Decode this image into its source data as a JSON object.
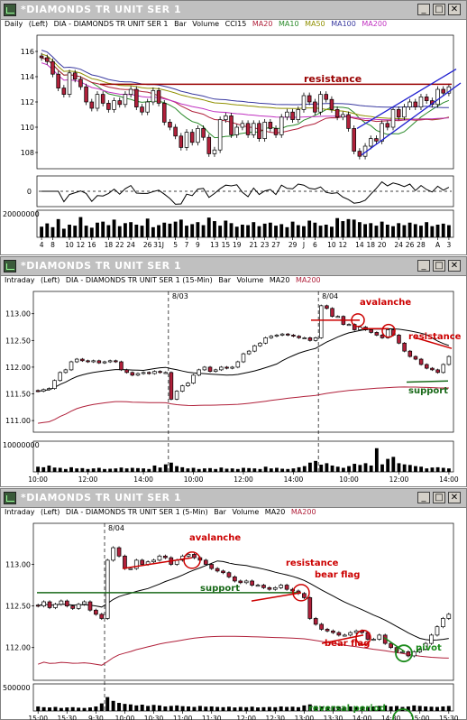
{
  "windows": [
    {
      "title": "*DIAMONDS TR UNIT SER 1",
      "legend": {
        "period": "Daily",
        "axis": "(Left)",
        "symbol": "DIA - DIAMONDS TR UNIT SER 1",
        "style": "Bar",
        "vol": "Volume",
        "osc": "CCI15",
        "ma": [
          {
            "label": "MA20",
            "color": "#b0203a"
          },
          {
            "label": "MA10",
            "color": "#2a8a2a"
          },
          {
            "label": "MA50",
            "color": "#909000"
          },
          {
            "label": "MA100",
            "color": "#3a3aa0"
          },
          {
            "label": "MA200",
            "color": "#c030c0"
          }
        ]
      }
    },
    {
      "title": "*DIAMONDS TR UNIT SER 1",
      "legend": {
        "period": "Intraday",
        "axis": "(Left)",
        "symbol": "DIA - DIAMONDS TR UNIT SER 1 (15-Min)",
        "style": "Bar",
        "vol": "Volume",
        "osc": "",
        "ma": [
          {
            "label": "MA20",
            "color": "#000000"
          },
          {
            "label": "MA200",
            "color": "#b0203a"
          }
        ]
      }
    },
    {
      "title": "*DIAMONDS TR UNIT SER 1",
      "legend": {
        "period": "Intraday",
        "axis": "(Left)",
        "symbol": "DIA - DIAMONDS TR UNIT SER 1 (5-Min)",
        "style": "Bar",
        "vol": "Volume",
        "osc": "",
        "ma": [
          {
            "label": "MA20",
            "color": "#000000"
          },
          {
            "label": "MA200",
            "color": "#b0203a"
          }
        ]
      }
    }
  ],
  "chart_data": [
    {
      "type": "candlestick",
      "title": "*DIAMONDS TR UNIT SER 1",
      "y_ticks": [
        108,
        110,
        112,
        114,
        116
      ],
      "ylim": [
        107,
        117
      ],
      "x_ticks": [
        "4",
        "8",
        "10",
        "12",
        "16",
        "18",
        "22",
        "24",
        "26",
        "31J",
        "5",
        "7",
        "9",
        "13",
        "15",
        "19",
        "21",
        "23",
        "27",
        "29",
        "J",
        "6",
        "10",
        "12",
        "14",
        "18",
        "20",
        "24",
        "26",
        "28",
        "A",
        "3"
      ],
      "close": [
        115.5,
        115.2,
        114.2,
        113.1,
        112.6,
        114.3,
        113.8,
        113.2,
        112.0,
        111.5,
        112.6,
        111.9,
        111.4,
        112.1,
        111.8,
        112.6,
        113.0,
        111.6,
        111.2,
        112.0,
        112.9,
        111.9,
        110.4,
        110.0,
        109.3,
        108.4,
        109.6,
        108.8,
        109.9,
        109.2,
        107.9,
        108.2,
        110.6,
        110.9,
        109.4,
        110.0,
        110.3,
        109.4,
        110.3,
        109.1,
        110.4,
        109.9,
        109.4,
        110.8,
        111.2,
        110.6,
        111.4,
        112.5,
        112.0,
        111.2,
        112.6,
        112.2,
        111.4,
        110.8,
        111.0,
        109.9,
        108.1,
        107.7,
        108.5,
        109.1,
        108.9,
        110.3,
        110.0,
        111.4,
        110.8,
        111.6,
        112.0,
        111.6,
        112.4,
        112.1,
        111.8,
        113.0,
        112.7,
        113.2
      ],
      "annotations": [
        {
          "text": "resistance",
          "color": "#990000"
        }
      ],
      "oscillator": {
        "label": "0"
      },
      "volume_label": "20000000",
      "volume": [
        0.42,
        0.55,
        0.4,
        0.72,
        0.34,
        0.5,
        0.46,
        0.8,
        0.46,
        0.38,
        0.58,
        0.62,
        0.48,
        0.7,
        0.44,
        0.56,
        0.6,
        0.5,
        0.46,
        0.74,
        0.4,
        0.48,
        0.58,
        0.54,
        0.62,
        0.7,
        0.46,
        0.52,
        0.6,
        0.48,
        0.78,
        0.64,
        0.46,
        0.66,
        0.56,
        0.42,
        0.5,
        0.48,
        0.6,
        0.44,
        0.54,
        0.58,
        0.46,
        0.52,
        0.4,
        0.62,
        0.48,
        0.44,
        0.66,
        0.58,
        0.46,
        0.5,
        0.42,
        0.76,
        0.64,
        0.72,
        0.7,
        0.6,
        0.52,
        0.56,
        0.46,
        0.62,
        0.5,
        0.44,
        0.56,
        0.48,
        0.58,
        0.52,
        0.46,
        0.6,
        0.44,
        0.5,
        0.54,
        0.48
      ]
    },
    {
      "type": "candlestick",
      "title": "*DIAMONDS TR UNIT SER 1",
      "y_ticks": [
        111.0,
        111.5,
        112.0,
        112.5,
        113.0
      ],
      "y_labels": [
        "111.00",
        "111.50",
        "112.00",
        "112.50",
        "113.00"
      ],
      "ylim": [
        110.85,
        113.35
      ],
      "x_ticks": [
        "10:00",
        "12:00",
        "14:00",
        "10:00",
        "12:00",
        "14:00",
        "10:00",
        "12:00",
        "14:00"
      ],
      "sessions": [
        "8/03",
        "8/04"
      ],
      "close": [
        111.55,
        111.58,
        111.6,
        111.75,
        111.9,
        111.95,
        112.1,
        112.15,
        112.12,
        112.1,
        112.12,
        112.08,
        112.1,
        112.12,
        112.1,
        111.95,
        111.9,
        111.85,
        111.88,
        111.9,
        111.88,
        111.92,
        111.9,
        111.9,
        111.4,
        111.55,
        111.65,
        111.7,
        111.85,
        111.95,
        112.0,
        111.92,
        111.95,
        112.0,
        111.98,
        112.0,
        112.1,
        112.25,
        112.3,
        112.4,
        112.45,
        112.55,
        112.58,
        112.6,
        112.62,
        112.6,
        112.58,
        112.55,
        112.55,
        112.5,
        112.55,
        113.15,
        113.1,
        112.95,
        112.95,
        112.8,
        112.8,
        112.7,
        112.75,
        112.7,
        112.65,
        112.6,
        112.55,
        112.7,
        112.6,
        112.45,
        112.3,
        112.2,
        112.15,
        112.05,
        111.98,
        111.95,
        111.9,
        112.05,
        112.2
      ],
      "annotations": [
        {
          "text": "avalanche",
          "color": "#cc0000"
        },
        {
          "text": "resistance",
          "color": "#cc0000"
        },
        {
          "text": "support",
          "color": "#1a6a1a"
        }
      ],
      "volume_label": "10000000",
      "volume": [
        0.18,
        0.16,
        0.22,
        0.15,
        0.14,
        0.1,
        0.16,
        0.12,
        0.13,
        0.1,
        0.12,
        0.14,
        0.1,
        0.11,
        0.12,
        0.15,
        0.12,
        0.14,
        0.13,
        0.12,
        0.1,
        0.22,
        0.15,
        0.26,
        0.32,
        0.2,
        0.16,
        0.12,
        0.14,
        0.1,
        0.12,
        0.13,
        0.1,
        0.15,
        0.11,
        0.12,
        0.1,
        0.14,
        0.13,
        0.12,
        0.1,
        0.18,
        0.12,
        0.14,
        0.11,
        0.1,
        0.12,
        0.16,
        0.2,
        0.32,
        0.38,
        0.25,
        0.3,
        0.22,
        0.18,
        0.14,
        0.2,
        0.28,
        0.24,
        0.3,
        0.22,
        0.82,
        0.26,
        0.45,
        0.52,
        0.3,
        0.26,
        0.24,
        0.2,
        0.18,
        0.12,
        0.15,
        0.16,
        0.14,
        0.12
      ]
    },
    {
      "type": "candlestick",
      "title": "*DIAMONDS TR UNIT SER 1",
      "y_ticks": [
        112.0,
        112.5,
        113.0
      ],
      "y_labels": [
        "112.00",
        "112.50",
        "113.00"
      ],
      "ylim": [
        111.65,
        113.45
      ],
      "x_ticks": [
        "15:00",
        "15:30",
        "9:30",
        "10:00",
        "10:30",
        "11:00",
        "11:30",
        "12:00",
        "12:30",
        "13:00",
        "13:30",
        "14:00",
        "14:30",
        "15:00",
        "15:30"
      ],
      "sessions": [
        "8/04"
      ],
      "close": [
        112.5,
        112.55,
        112.48,
        112.52,
        112.56,
        112.5,
        112.47,
        112.52,
        112.55,
        112.45,
        112.4,
        112.35,
        113.05,
        113.2,
        113.1,
        112.95,
        112.95,
        113.05,
        113.0,
        113.03,
        113.05,
        113.1,
        113.08,
        113.0,
        113.05,
        113.1,
        113.12,
        113.08,
        113.05,
        113.0,
        112.95,
        112.92,
        112.9,
        112.85,
        112.8,
        112.78,
        112.8,
        112.75,
        112.75,
        112.72,
        112.7,
        112.72,
        112.75,
        112.7,
        112.68,
        112.65,
        112.6,
        112.35,
        112.28,
        112.22,
        112.2,
        112.18,
        112.15,
        112.15,
        112.18,
        112.2,
        112.18,
        112.1,
        112.1,
        112.15,
        112.05,
        112.0,
        111.95,
        111.95,
        111.9,
        111.95,
        111.98,
        112.05,
        112.15,
        112.25,
        112.35,
        112.4
      ],
      "annotations": [
        {
          "text": "avalanche",
          "color": "#cc0000"
        },
        {
          "text": "resistance",
          "color": "#cc0000"
        },
        {
          "text": "bear flag",
          "color": "#cc0000"
        },
        {
          "text": "bear flag",
          "color": "#cc0000"
        },
        {
          "text": "support",
          "color": "#1a6a1a"
        },
        {
          "text": "pivot",
          "color": "#1a8a1a"
        },
        {
          "text": "reversal period",
          "color": "#1a8a1a"
        }
      ],
      "volume_label": "500000",
      "volume": [
        0.18,
        0.15,
        0.14,
        0.16,
        0.12,
        0.14,
        0.15,
        0.13,
        0.12,
        0.14,
        0.18,
        0.3,
        0.55,
        0.4,
        0.32,
        0.28,
        0.26,
        0.22,
        0.25,
        0.2,
        0.24,
        0.22,
        0.18,
        0.2,
        0.22,
        0.19,
        0.18,
        0.16,
        0.2,
        0.17,
        0.18,
        0.16,
        0.15,
        0.17,
        0.14,
        0.16,
        0.15,
        0.17,
        0.14,
        0.15,
        0.16,
        0.15,
        0.18,
        0.16,
        0.17,
        0.15,
        0.22,
        0.26,
        0.2,
        0.18,
        0.16,
        0.19,
        0.17,
        0.15,
        0.18,
        0.16,
        0.17,
        0.15,
        0.18,
        0.2,
        0.22,
        0.18,
        0.2,
        0.16,
        0.18,
        0.22,
        0.2,
        0.18,
        0.17,
        0.16,
        0.18,
        0.2
      ]
    }
  ]
}
